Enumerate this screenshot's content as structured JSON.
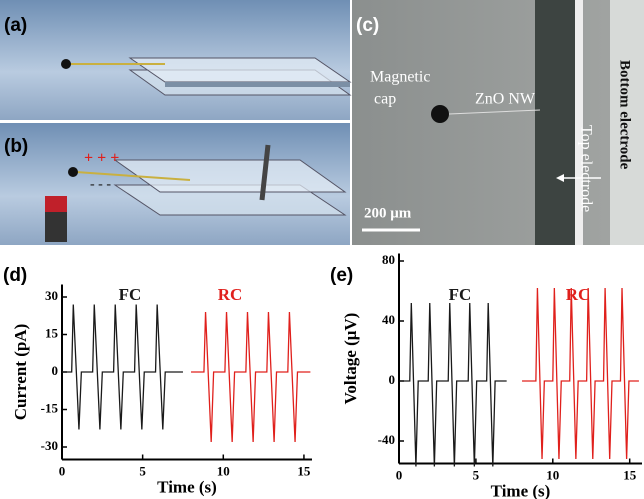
{
  "panels": {
    "a": {
      "label": "(a)"
    },
    "b": {
      "label": "(b)",
      "charges": {
        "plus": "+ + +",
        "minus": "- - -"
      }
    },
    "c": {
      "label": "(c)",
      "magnetic_cap": [
        "Magnetic",
        "cap"
      ],
      "nanowire": "ZnO NW",
      "top_electrode": "Top electrode",
      "bottom_electrode": "Bottom electrode",
      "scale_bar": "200 μm"
    }
  },
  "chart_data": [
    {
      "type": "line",
      "label": "(d)",
      "xlabel": "Time (s)",
      "ylabel": "Current (pA)",
      "xlim": [
        0,
        15.5
      ],
      "xticks": [
        0,
        5,
        10,
        15
      ],
      "ylim": [
        -35,
        35
      ],
      "yticks": [
        30,
        15,
        0,
        -15,
        -30
      ],
      "series": [
        {
          "name": "FC",
          "color": "#1a1a1a",
          "x": [
            0,
            0.6,
            0.7,
            1.05,
            1.2,
            1.9,
            2.0,
            2.35,
            2.5,
            3.2,
            3.3,
            3.65,
            3.8,
            4.5,
            4.6,
            4.95,
            5.1,
            5.8,
            5.9,
            6.25,
            6.4,
            7.5
          ],
          "values": [
            0,
            0,
            27,
            -23,
            0,
            0,
            27,
            -23,
            0,
            0,
            27,
            -23,
            0,
            0,
            27,
            -23,
            0,
            0,
            27,
            -23,
            0,
            0
          ]
        },
        {
          "name": "RC",
          "color": "#e0201c",
          "x": [
            8.0,
            8.8,
            8.9,
            9.25,
            9.4,
            10.1,
            10.2,
            10.55,
            10.7,
            11.4,
            11.5,
            11.85,
            12.0,
            12.7,
            12.8,
            13.15,
            13.3,
            14.0,
            14.1,
            14.45,
            14.6,
            15.4
          ],
          "values": [
            0,
            0,
            24,
            -28,
            0,
            0,
            24,
            -28,
            0,
            0,
            24,
            -28,
            0,
            0,
            24,
            -28,
            0,
            0,
            24,
            -28,
            0,
            0
          ]
        }
      ]
    },
    {
      "type": "line",
      "label": "(e)",
      "xlabel": "Time (s)",
      "ylabel": "Voltage (μV)",
      "xlim": [
        0,
        15.8
      ],
      "xticks": [
        0,
        5,
        10,
        15
      ],
      "ylim": [
        -55,
        85
      ],
      "yticks": [
        80,
        40,
        0,
        -40
      ],
      "series": [
        {
          "name": "FC",
          "color": "#1a1a1a",
          "x": [
            0.2,
            0.7,
            0.8,
            1.1,
            1.25,
            1.9,
            2.0,
            2.3,
            2.45,
            3.2,
            3.3,
            3.6,
            3.75,
            4.5,
            4.6,
            4.9,
            5.05,
            5.7,
            5.8,
            6.1,
            6.25,
            7.0
          ],
          "values": [
            0,
            0,
            52,
            -57,
            0,
            0,
            52,
            -57,
            0,
            0,
            52,
            -57,
            0,
            0,
            52,
            -57,
            0,
            0,
            52,
            -57,
            0,
            0
          ]
        },
        {
          "name": "RC",
          "color": "#e0201c",
          "x": [
            8.0,
            8.9,
            9.0,
            9.3,
            9.45,
            10.0,
            10.1,
            10.4,
            10.55,
            11.1,
            11.2,
            11.5,
            11.65,
            12.2,
            12.3,
            12.6,
            12.75,
            13.3,
            13.4,
            13.7,
            13.85,
            14.4,
            14.5,
            14.8,
            14.95,
            15.6
          ],
          "values": [
            0,
            0,
            62,
            -52,
            0,
            0,
            62,
            -52,
            0,
            0,
            62,
            -52,
            0,
            0,
            62,
            -52,
            0,
            0,
            62,
            -52,
            0,
            0,
            62,
            -52,
            0,
            0
          ]
        }
      ]
    }
  ]
}
